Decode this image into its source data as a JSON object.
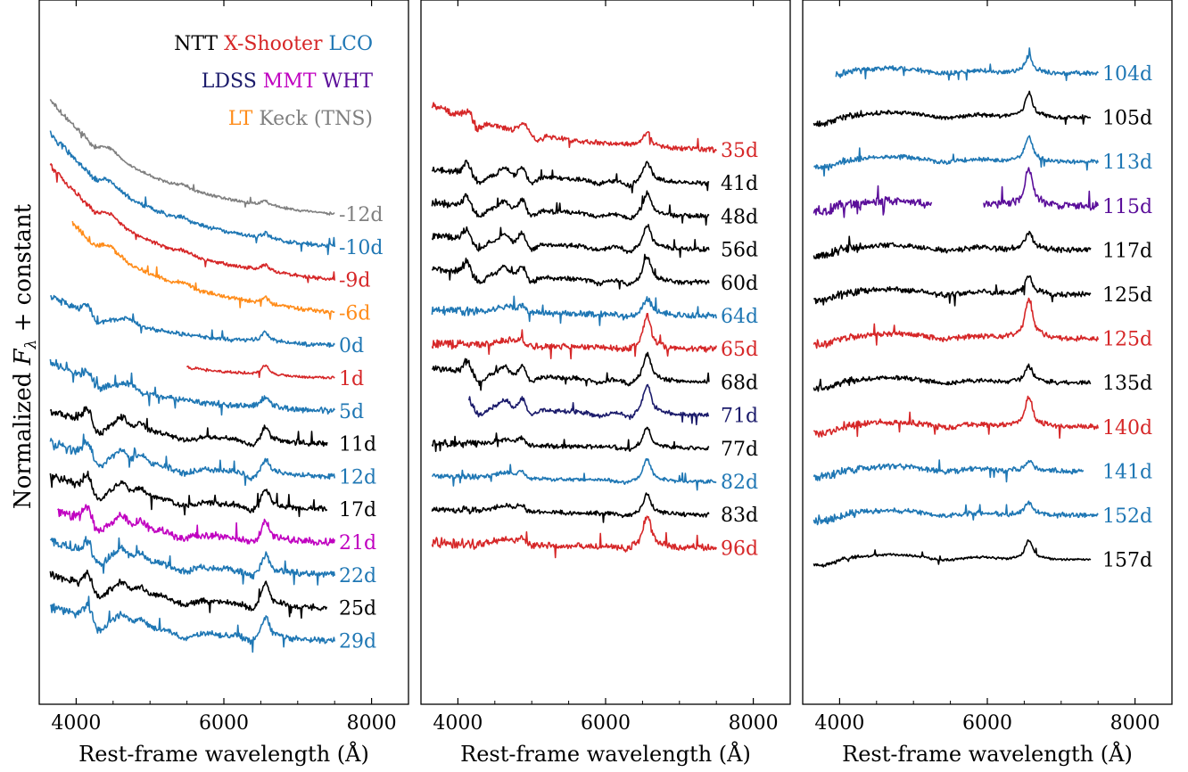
{
  "chart_data": {
    "type": "line",
    "ylabel_main": "Normalized ",
    "ylabel_flux": "F",
    "ylabel_sub": "λ",
    "ylabel_tail": " + constant",
    "xlabel": "Rest-frame wavelength (Å)",
    "xlim": [
      3500,
      8500
    ],
    "xticks": [
      4000,
      6000,
      8000
    ],
    "colors": {
      "NTT": "#000000",
      "X-Shooter": "#d62728",
      "LCO": "#1f77b4",
      "LDSS": "#1b1b6b",
      "MMT": "#c000c0",
      "WHT": "#5b0f9a",
      "LT": "#ff8c1a",
      "Keck (TNS)": "#808080"
    },
    "legend": [
      [
        "NTT",
        "X-Shooter",
        "LCO"
      ],
      [
        "LDSS",
        "MMT",
        "WHT"
      ],
      [
        "LT",
        "Keck (TNS)"
      ]
    ],
    "panels": [
      {
        "spectra": [
          {
            "label": "-12d",
            "instrument": "Keck (TNS)",
            "range": [
              3650,
              7500
            ],
            "shape": "blue",
            "noise": 0.4,
            "ha": 0.3
          },
          {
            "label": "-10d",
            "instrument": "LCO",
            "range": [
              3650,
              7500
            ],
            "shape": "blue",
            "noise": 0.6,
            "ha": 0.3
          },
          {
            "label": "-9d",
            "instrument": "X-Shooter",
            "range": [
              3650,
              7500
            ],
            "shape": "blue",
            "noise": 0.5,
            "ha": 0.4
          },
          {
            "label": "-6d",
            "instrument": "LT",
            "range": [
              3950,
              7500
            ],
            "shape": "blue",
            "noise": 0.6,
            "ha": 0.4
          },
          {
            "label": "0d",
            "instrument": "LCO",
            "range": [
              3650,
              7500
            ],
            "shape": "early",
            "noise": 0.6,
            "ha": 0.6
          },
          {
            "label": "1d",
            "instrument": "X-Shooter",
            "range": [
              5500,
              7500
            ],
            "shape": "early",
            "noise": 0.4,
            "ha": 0.6
          },
          {
            "label": "5d",
            "instrument": "LCO",
            "range": [
              3650,
              7500
            ],
            "shape": "early",
            "noise": 0.8,
            "ha": 0.7
          },
          {
            "label": "11d",
            "instrument": "NTT",
            "range": [
              3650,
              7400
            ],
            "shape": "mid",
            "noise": 0.8,
            "ha": 0.9
          },
          {
            "label": "12d",
            "instrument": "LCO",
            "range": [
              3650,
              7500
            ],
            "shape": "mid",
            "noise": 0.8,
            "ha": 0.9
          },
          {
            "label": "17d",
            "instrument": "NTT",
            "range": [
              3650,
              7400
            ],
            "shape": "mid",
            "noise": 0.8,
            "ha": 1.2
          },
          {
            "label": "21d",
            "instrument": "MMT",
            "range": [
              3750,
              7500
            ],
            "shape": "mid",
            "noise": 1.0,
            "ha": 1.2
          },
          {
            "label": "22d",
            "instrument": "LCO",
            "range": [
              3650,
              7500
            ],
            "shape": "mid",
            "noise": 0.9,
            "ha": 1.1
          },
          {
            "label": "25d",
            "instrument": "NTT",
            "range": [
              3650,
              7400
            ],
            "shape": "mid",
            "noise": 0.8,
            "ha": 1.4
          },
          {
            "label": "29d",
            "instrument": "LCO",
            "range": [
              3650,
              7500
            ],
            "shape": "mid",
            "noise": 0.9,
            "ha": 1.3
          }
        ]
      },
      {
        "spectra": [
          {
            "label": "35d",
            "instrument": "X-Shooter",
            "range": [
              3650,
              7500
            ],
            "shape": "blue2",
            "noise": 0.9,
            "ha": 1.2
          },
          {
            "label": "41d",
            "instrument": "NTT",
            "range": [
              3650,
              7400
            ],
            "shape": "late",
            "noise": 0.8,
            "ha": 1.6
          },
          {
            "label": "48d",
            "instrument": "NTT",
            "range": [
              3650,
              7400
            ],
            "shape": "late",
            "noise": 0.8,
            "ha": 1.8
          },
          {
            "label": "56d",
            "instrument": "NTT",
            "range": [
              3650,
              7400
            ],
            "shape": "late",
            "noise": 0.8,
            "ha": 1.9
          },
          {
            "label": "60d",
            "instrument": "NTT",
            "range": [
              3650,
              7400
            ],
            "shape": "late",
            "noise": 0.8,
            "ha": 2.0
          },
          {
            "label": "64d",
            "instrument": "LCO",
            "range": [
              3650,
              7500
            ],
            "shape": "flat",
            "noise": 1.1,
            "ha": 1.4
          },
          {
            "label": "65d",
            "instrument": "X-Shooter",
            "range": [
              3650,
              7500
            ],
            "shape": "flat",
            "noise": 1.1,
            "ha": 2.6
          },
          {
            "label": "68d",
            "instrument": "NTT",
            "range": [
              3650,
              7400
            ],
            "shape": "late",
            "noise": 0.8,
            "ha": 2.2
          },
          {
            "label": "71d",
            "instrument": "LDSS",
            "range": [
              4150,
              7400
            ],
            "shape": "late",
            "noise": 0.8,
            "ha": 2.4
          },
          {
            "label": "77d",
            "instrument": "NTT",
            "range": [
              3650,
              7400
            ],
            "shape": "flat",
            "noise": 0.8,
            "ha": 1.6
          },
          {
            "label": "82d",
            "instrument": "LCO",
            "range": [
              3650,
              7500
            ],
            "shape": "flat",
            "noise": 0.7,
            "ha": 1.8
          },
          {
            "label": "83d",
            "instrument": "NTT",
            "range": [
              3650,
              7400
            ],
            "shape": "flat",
            "noise": 0.8,
            "ha": 1.6
          },
          {
            "label": "96d",
            "instrument": "X-Shooter",
            "range": [
              3650,
              7500
            ],
            "shape": "flat",
            "noise": 1.2,
            "ha": 2.6
          }
        ]
      },
      {
        "spectra": [
          {
            "label": "104d",
            "instrument": "LCO",
            "range": [
              3950,
              7500
            ],
            "shape": "neb",
            "noise": 0.9,
            "ha": 1.6
          },
          {
            "label": "105d",
            "instrument": "NTT",
            "range": [
              3650,
              7400
            ],
            "shape": "neb",
            "noise": 0.8,
            "ha": 2.2
          },
          {
            "label": "113d",
            "instrument": "LCO",
            "range": [
              3650,
              7500
            ],
            "shape": "neb",
            "noise": 0.9,
            "ha": 2.2
          },
          {
            "label": "115d",
            "instrument": "WHT",
            "range": [
              3650,
              7500
            ],
            "shape": "neb",
            "noise": 1.6,
            "ha": 3.4,
            "gap": [
              5250,
              5950
            ]
          },
          {
            "label": "117d",
            "instrument": "NTT",
            "range": [
              3650,
              7400
            ],
            "shape": "neb",
            "noise": 1.1,
            "ha": 1.6
          },
          {
            "label": "125d",
            "instrument": "NTT",
            "range": [
              3650,
              7400
            ],
            "shape": "neb",
            "noise": 1.1,
            "ha": 1.6
          },
          {
            "label": "125d",
            "instrument": "X-Shooter",
            "range": [
              3650,
              7500
            ],
            "shape": "neb",
            "noise": 1.1,
            "ha": 3.6
          },
          {
            "label": "135d",
            "instrument": "NTT",
            "range": [
              3650,
              7400
            ],
            "shape": "neb",
            "noise": 0.9,
            "ha": 1.5
          },
          {
            "label": "140d",
            "instrument": "X-Shooter",
            "range": [
              3650,
              7500
            ],
            "shape": "neb",
            "noise": 1.1,
            "ha": 2.8
          },
          {
            "label": "141d",
            "instrument": "LCO",
            "range": [
              3650,
              7300
            ],
            "shape": "neb",
            "noise": 1.1,
            "ha": 1.0
          },
          {
            "label": "152d",
            "instrument": "LCO",
            "range": [
              3650,
              7500
            ],
            "shape": "neb",
            "noise": 1.0,
            "ha": 1.2
          },
          {
            "label": "157d",
            "instrument": "NTT",
            "range": [
              3650,
              7400
            ],
            "shape": "neb",
            "noise": 0.5,
            "ha": 1.8
          }
        ]
      }
    ]
  }
}
